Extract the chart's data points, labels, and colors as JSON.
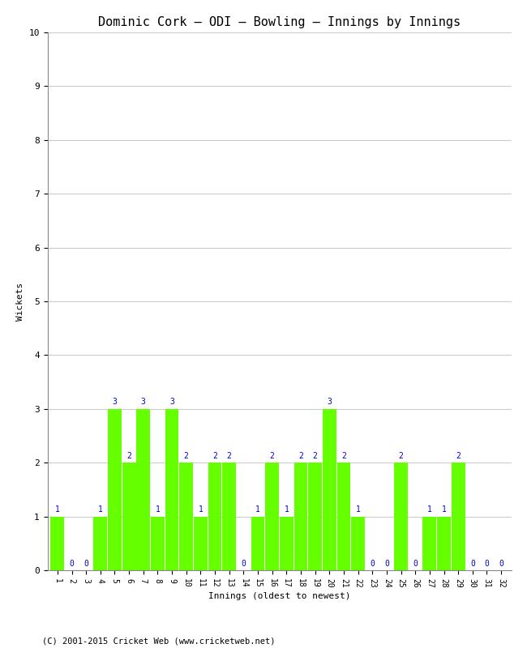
{
  "title": "Dominic Cork – ODI – Bowling – Innings by Innings",
  "xlabel": "Innings (oldest to newest)",
  "ylabel": "Wickets",
  "bar_color": "#66ff00",
  "label_color": "#0000cc",
  "background_color": "#ffffff",
  "grid_color": "#cccccc",
  "ylim": [
    0,
    10
  ],
  "yticks": [
    0,
    1,
    2,
    3,
    4,
    5,
    6,
    7,
    8,
    9,
    10
  ],
  "innings": [
    1,
    2,
    3,
    4,
    5,
    6,
    7,
    8,
    9,
    10,
    11,
    12,
    13,
    14,
    15,
    16,
    17,
    18,
    19,
    20,
    21,
    22,
    23,
    24,
    25,
    26,
    27,
    28,
    29,
    30,
    31,
    32
  ],
  "wickets": [
    1,
    0,
    0,
    1,
    3,
    2,
    3,
    1,
    3,
    2,
    1,
    2,
    2,
    0,
    1,
    2,
    1,
    2,
    2,
    3,
    2,
    1,
    0,
    0,
    2,
    0,
    1,
    1,
    2,
    0,
    0,
    0
  ],
  "footnote": "(C) 2001-2015 Cricket Web (www.cricketweb.net)"
}
